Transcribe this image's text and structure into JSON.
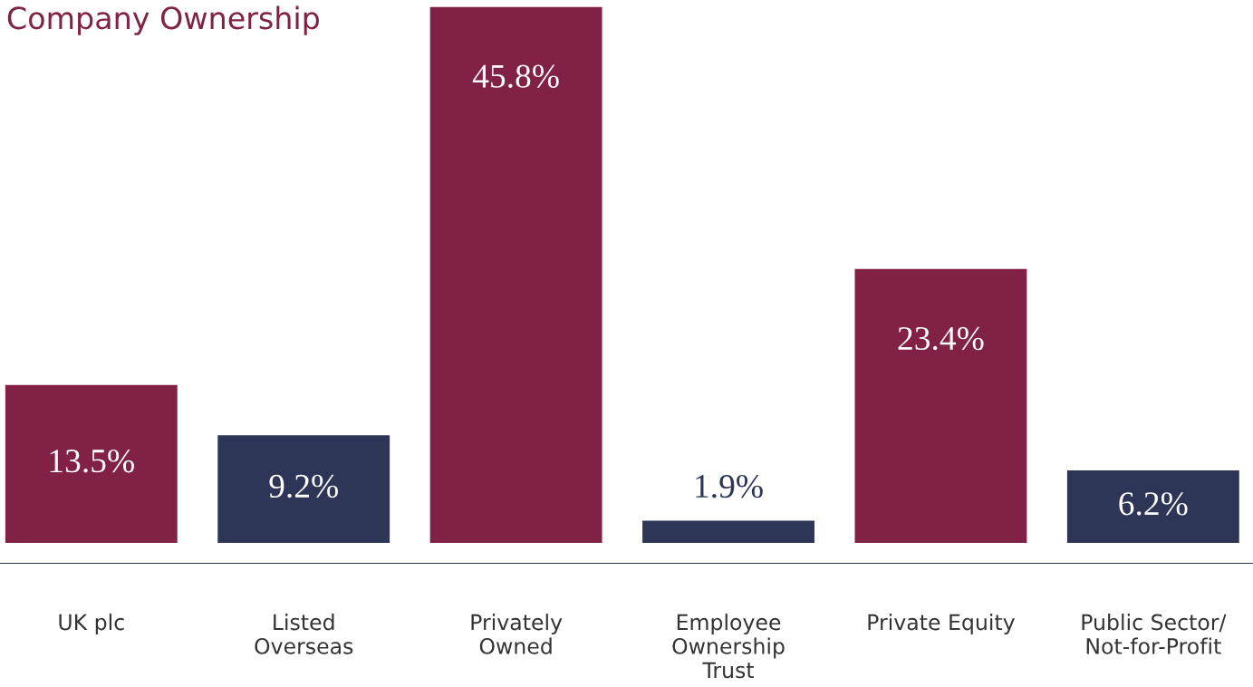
{
  "chart_data": {
    "type": "bar",
    "title": "Company Ownership",
    "categories": [
      "UK plc",
      "Listed\nOverseas",
      "Privately\nOwned",
      "Employee\nOwnership\nTrust",
      "Private Equity",
      "Public Sector/\nNot-for-Profit"
    ],
    "values": [
      13.5,
      9.2,
      45.8,
      1.9,
      23.4,
      6.2
    ],
    "colors": [
      "#822146",
      "#2e3657",
      "#822146",
      "#2e3657",
      "#822146",
      "#2e3657"
    ],
    "value_labels": [
      "13.5%",
      "9.2%",
      "45.8%",
      "1.9%",
      "23.4%",
      "6.2%"
    ],
    "grid": false,
    "legend": false
  }
}
